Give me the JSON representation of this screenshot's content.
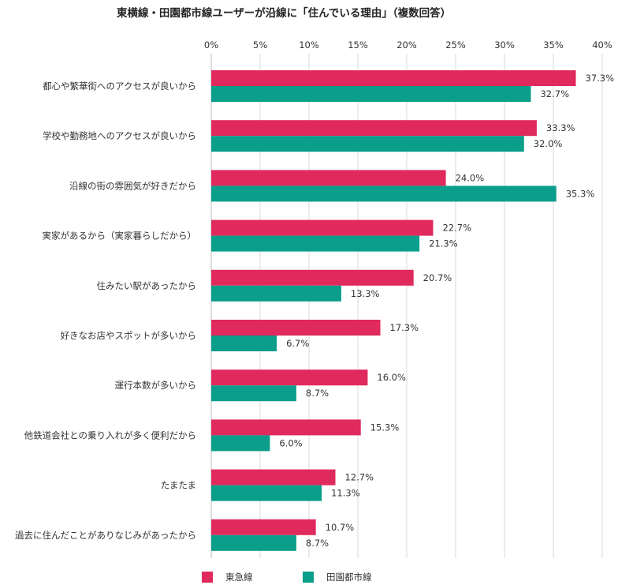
{
  "chart_data": {
    "type": "bar",
    "orientation": "horizontal",
    "title": "東横線・田園都市線ユーザーが沿線に「住んでいる理由」（複数回答）",
    "x_ticks": [
      "0%",
      "5%",
      "10%",
      "15%",
      "20%",
      "25%",
      "30%",
      "35%",
      "40%"
    ],
    "xlim": [
      0,
      40
    ],
    "grid": true,
    "legend_position": "bottom",
    "categories": [
      "都心や繁華街へのアクセスが良いから",
      "学校や勤務地へのアクセスが良いから",
      "沿線の街の雰囲気が好きだから",
      "実家があるから（実家暮らしだから）",
      "住みたい駅があったから",
      "好きなお店やスポットが多いから",
      "運行本数が多いから",
      "他鉄道会社との乗り入れが多く便利だから",
      "たまたま",
      "過去に住んだことがありなじみがあったから"
    ],
    "series": [
      {
        "name": "東急線",
        "color": "#E0295C",
        "values": [
          37.3,
          33.3,
          24.0,
          22.7,
          20.7,
          17.3,
          16.0,
          15.3,
          12.7,
          10.7
        ],
        "labels": [
          "37.3%",
          "33.3%",
          "24.0%",
          "22.7%",
          "20.7%",
          "17.3%",
          "16.0%",
          "15.3%",
          "12.7%",
          "10.7%"
        ]
      },
      {
        "name": "田園都市線",
        "color": "#0B9E8B",
        "values": [
          32.7,
          32.0,
          35.3,
          21.3,
          13.3,
          6.7,
          8.7,
          6.0,
          11.3,
          8.7
        ],
        "labels": [
          "32.7%",
          "32.0%",
          "35.3%",
          "21.3%",
          "13.3%",
          "6.7%",
          "8.7%",
          "6.0%",
          "11.3%",
          "8.7%"
        ]
      }
    ]
  }
}
